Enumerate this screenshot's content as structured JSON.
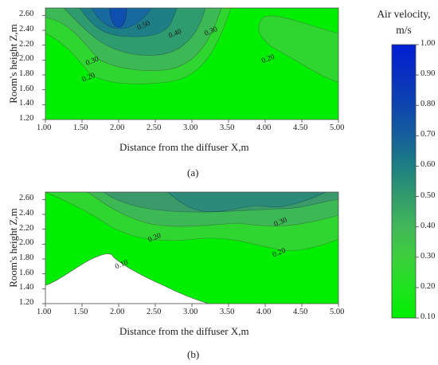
{
  "chart_data": [
    {
      "type": "contour",
      "panel_label": "(a)",
      "xlabel": "Distance from the diffuser X,m",
      "ylabel": "Room's height Z,m",
      "xlim": [
        1.0,
        5.0
      ],
      "ylim": [
        1.2,
        2.7
      ],
      "x_ticks": [
        "1.00",
        "1.50",
        "2.00",
        "2.50",
        "3.00",
        "3.50",
        "4.00",
        "4.50",
        "5.00"
      ],
      "y_ticks": [
        "1.20",
        "1.40",
        "1.60",
        "1.80",
        "2.00",
        "2.20",
        "2.40",
        "2.60"
      ],
      "contour_labels": [
        {
          "text": "0.50",
          "x": 2.35,
          "y": 2.44
        },
        {
          "text": "0.40",
          "x": 2.78,
          "y": 2.33
        },
        {
          "text": "0.30",
          "x": 3.27,
          "y": 2.36
        },
        {
          "text": "0.30",
          "x": 1.65,
          "y": 1.96
        },
        {
          "text": "0.20",
          "x": 1.6,
          "y": 1.74
        },
        {
          "text": "0.20",
          "x": 4.05,
          "y": 1.99
        }
      ]
    },
    {
      "type": "contour",
      "panel_label": "(b)",
      "xlabel": "Distance from the diffuser X,m",
      "ylabel": "Room's height Z,m",
      "xlim": [
        1.0,
        5.0
      ],
      "ylim": [
        1.2,
        2.7
      ],
      "x_ticks": [
        "1.00",
        "1.50",
        "2.00",
        "2.50",
        "3.00",
        "3.50",
        "4.00",
        "4.50",
        "5.00"
      ],
      "y_ticks": [
        "1.20",
        "1.40",
        "1.60",
        "1.80",
        "2.00",
        "2.20",
        "2.40",
        "2.60"
      ],
      "contour_labels": [
        {
          "text": "0.30",
          "x": 4.22,
          "y": 2.27
        },
        {
          "text": "0.20",
          "x": 2.5,
          "y": 2.06
        },
        {
          "text": "0.20",
          "x": 4.2,
          "y": 1.86
        },
        {
          "text": "0.10",
          "x": 2.05,
          "y": 1.7
        }
      ]
    }
  ],
  "colorbar": {
    "title_line1": "Air velocity,",
    "title_line2": "m/s",
    "ticks": [
      "1.00",
      "0.90",
      "0.80",
      "0.70",
      "0.60",
      "0.50",
      "0.40",
      "0.30",
      "0.20",
      "0.10"
    ],
    "range": [
      0.1,
      1.0
    ],
    "colors": {
      "0.1": "#00ee00",
      "0.2": "#1fe41f",
      "0.3": "#3cce3c",
      "0.4": "#42b85a",
      "0.5": "#329c6c",
      "0.6": "#1c7f82",
      "0.7": "#155f9c",
      "0.8": "#0d45ae",
      "0.9": "#0930c0",
      "1.0": "#021fd4"
    }
  }
}
